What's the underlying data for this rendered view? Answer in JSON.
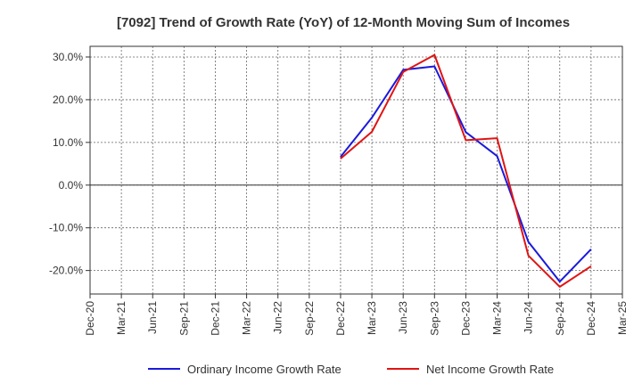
{
  "chart_data": {
    "type": "line",
    "title": "[7092]  Trend of Growth Rate (YoY) of 12-Month Moving Sum of Incomes",
    "xlabel": "",
    "ylabel": "",
    "x_ticks": [
      "Dec-20",
      "Mar-21",
      "Jun-21",
      "Sep-21",
      "Dec-21",
      "Mar-22",
      "Jun-22",
      "Sep-22",
      "Dec-22",
      "Mar-23",
      "Jun-23",
      "Sep-23",
      "Dec-23",
      "Mar-24",
      "Jun-24",
      "Sep-24",
      "Dec-24",
      "Mar-25"
    ],
    "y_ticks": [
      "30.0%",
      "20.0%",
      "10.0%",
      "0.0%",
      "-10.0%",
      "-20.0%"
    ],
    "y_tick_values": [
      30,
      20,
      10,
      0,
      -10,
      -20
    ],
    "ylim": [
      -25.5,
      32.5
    ],
    "grid": true,
    "legend_position": "bottom",
    "series": [
      {
        "name": "Ordinary Income Growth Rate",
        "color": "#1a1adc",
        "x": [
          "Dec-22",
          "Mar-23",
          "Jun-23",
          "Sep-23",
          "Dec-23",
          "Mar-24",
          "Jun-24",
          "Sep-24",
          "Dec-24"
        ],
        "values": [
          6.6,
          15.8,
          27.0,
          27.8,
          12.4,
          6.8,
          -13.3,
          -22.6,
          -15.0
        ]
      },
      {
        "name": "Net Income Growth Rate",
        "color": "#e01414",
        "x": [
          "Dec-22",
          "Mar-23",
          "Jun-23",
          "Sep-23",
          "Dec-23",
          "Mar-24",
          "Jun-24",
          "Sep-24",
          "Dec-24"
        ],
        "values": [
          6.2,
          12.5,
          26.5,
          30.5,
          10.5,
          11.0,
          -16.5,
          -23.8,
          -19.0
        ]
      }
    ]
  }
}
